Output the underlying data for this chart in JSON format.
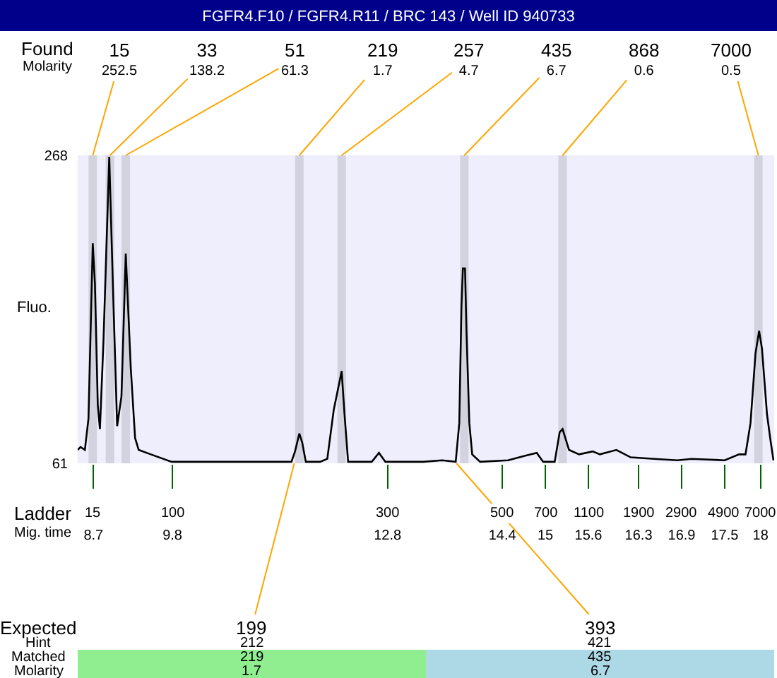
{
  "chart_data": {
    "type": "line",
    "title": "FGFR4.F10 / FGFR4.R11 / BRC 143 / Well ID 940733",
    "ylabel": "Fluo.",
    "color": "#000000",
    "x": [
      8.48,
      8.52,
      8.58,
      8.63,
      8.69,
      8.72,
      8.76,
      8.79,
      8.84,
      8.92,
      8.97,
      9.03,
      9.09,
      9.15,
      9.22,
      9.28,
      9.33,
      9.5,
      9.79,
      10.05,
      11.46,
      11.51,
      11.57,
      11.61,
      11.66,
      11.86,
      11.96,
      12.05,
      12.16,
      12.2,
      12.25,
      12.58,
      12.68,
      12.77,
      13.3,
      13.56,
      13.75,
      13.8,
      13.83,
      13.85,
      13.88,
      13.9,
      13.94,
      13.98,
      14.09,
      14.48,
      14.71,
      14.88,
      14.97,
      15.13,
      15.2,
      15.24,
      15.33,
      15.47,
      15.66,
      15.76,
      15.99,
      16.19,
      16.52,
      16.84,
      17.04,
      17.5,
      17.7,
      17.79,
      17.86,
      17.93,
      17.98,
      18.02,
      18.09,
      18.14,
      18.18
    ],
    "values": [
      70,
      72,
      70,
      91,
      209,
      182,
      100,
      84,
      144,
      267,
      182,
      86,
      106,
      202,
      125,
      78,
      70,
      67,
      62,
      62,
      62,
      69,
      81,
      75,
      62,
      62,
      64,
      97,
      123,
      94,
      62,
      62,
      68,
      62,
      62,
      63,
      62,
      88,
      166,
      192,
      192,
      150,
      88,
      67,
      62,
      63,
      66,
      68,
      62,
      62,
      82,
      84,
      70,
      67,
      69,
      67,
      70,
      65,
      64,
      63,
      64,
      63,
      67,
      67,
      88,
      135,
      150,
      138,
      94,
      76,
      63
    ],
    "xlim": [
      8.48,
      18.19
    ],
    "xticks": [
      8.7,
      9.8,
      12.8,
      14.4,
      15,
      15.6,
      16.3,
      16.9,
      17.5,
      18
    ],
    "ylim": [
      61,
      268
    ],
    "yticks": [
      61,
      268
    ],
    "ref_lines": [
      {
        "axis": "x",
        "value": 8.69,
        "color": "#d3d3df"
      },
      {
        "axis": "x",
        "value": 8.93,
        "color": "#d3d3df"
      },
      {
        "axis": "x",
        "value": 9.15,
        "color": "#d3d3df"
      },
      {
        "axis": "x",
        "value": 11.57,
        "color": "#d3d3df"
      },
      {
        "axis": "x",
        "value": 12.16,
        "color": "#d3d3df"
      },
      {
        "axis": "x",
        "value": 13.87,
        "color": "#d3d3df"
      },
      {
        "axis": "x",
        "value": 15.24,
        "color": "#d3d3df"
      },
      {
        "axis": "x",
        "value": 17.97,
        "color": "#d3d3df"
      }
    ],
    "annotations": [
      "Found\nMolarity",
      "Ladder\nMig. time",
      "Expected\nHint\nMatched\nMolarity",
      "15",
      "100",
      "300",
      "500",
      "700",
      "1100",
      "1900",
      "2900",
      "4900",
      "7000",
      {
        "text": "15\n252.5",
        "x": 8.69,
        "y": 268
      },
      {
        "text": "33\n138.2",
        "x": 8.93,
        "y": 268
      },
      {
        "text": "51\n61.3",
        "x": 9.15,
        "y": 268
      },
      {
        "text": "219\n1.7",
        "x": 11.57,
        "y": 268
      },
      {
        "text": "257\n4.7",
        "x": 12.16,
        "y": 268
      },
      {
        "text": "435\n6.7",
        "x": 13.87,
        "y": 268
      },
      {
        "text": "868\n0.6",
        "x": 15.24,
        "y": 268
      },
      {
        "text": "7000\n0.5",
        "x": 17.97,
        "y": 268
      },
      {
        "text": "199\n212\n219\n1.7",
        "x": 11.5,
        "y": 61
      },
      {
        "text": "393\n421\n435\n6.7",
        "x": 13.76,
        "y": 61
      }
    ]
  }
}
